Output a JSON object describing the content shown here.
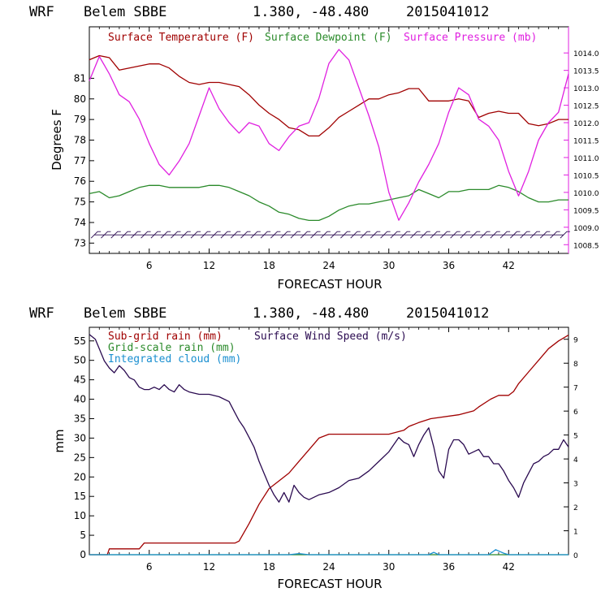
{
  "header": {
    "model": "WRF",
    "station": "Belem SBBE",
    "coords": "1.380, -48.480",
    "init": "2015041012"
  },
  "colors": {
    "temperature": "#a00000",
    "dewpoint": "#2a8a2a",
    "pressure": "#e020e0",
    "subgrid_rain": "#a00000",
    "gridscale_rain": "#2a8a2a",
    "cloud": "#1a8fd0",
    "wind": "#2a0a50"
  },
  "chart_data": [
    {
      "type": "line",
      "xlabel": "FORECAST HOUR",
      "ylabel": "Degrees F",
      "xlim": [
        0,
        48
      ],
      "xticks": [
        6,
        12,
        18,
        24,
        30,
        36,
        42
      ],
      "ylim": [
        72.5,
        83.5
      ],
      "yticks": [
        73,
        74,
        75,
        76,
        77,
        78,
        79,
        80,
        81
      ],
      "y2lim": [
        1008.25,
        1014.75
      ],
      "y2ticks": [
        "1008.5",
        "1009.0",
        "1009.5",
        "1010.0",
        "1010.5",
        "1011.0",
        "1011.5",
        "1012.0",
        "1012.5",
        "1013.0",
        "1013.5",
        "1014.0"
      ],
      "legend": [
        "Surface Temperature (F)",
        "Surface Dewpoint (F)",
        "Surface Pressure (mb)"
      ],
      "series": [
        {
          "name": "Surface Temperature (F)",
          "axis": "left",
          "x": [
            0,
            1,
            2,
            3,
            4,
            5,
            6,
            7,
            8,
            9,
            10,
            11,
            12,
            13,
            14,
            15,
            16,
            17,
            18,
            19,
            20,
            21,
            22,
            23,
            24,
            25,
            26,
            27,
            28,
            29,
            30,
            31,
            32,
            33,
            34,
            35,
            36,
            37,
            38,
            39,
            40,
            41,
            42,
            43,
            44,
            45,
            46,
            47,
            48
          ],
          "y": [
            81.9,
            82.1,
            82.0,
            81.4,
            81.5,
            81.6,
            81.7,
            81.7,
            81.5,
            81.1,
            80.8,
            80.7,
            80.8,
            80.8,
            80.7,
            80.6,
            80.2,
            79.7,
            79.3,
            79.0,
            78.6,
            78.5,
            78.2,
            78.2,
            78.6,
            79.1,
            79.4,
            79.7,
            80.0,
            80.0,
            80.2,
            80.3,
            80.5,
            80.5,
            79.9,
            79.9,
            79.9,
            80.0,
            79.9,
            79.1,
            79.3,
            79.4,
            79.3,
            79.3,
            78.8,
            78.7,
            78.8,
            79.0,
            79.0
          ]
        },
        {
          "name": "Surface Dewpoint (F)",
          "axis": "left",
          "x": [
            0,
            1,
            2,
            3,
            4,
            5,
            6,
            7,
            8,
            9,
            10,
            11,
            12,
            13,
            14,
            15,
            16,
            17,
            18,
            19,
            20,
            21,
            22,
            23,
            24,
            25,
            26,
            27,
            28,
            29,
            30,
            31,
            32,
            33,
            34,
            35,
            36,
            37,
            38,
            39,
            40,
            41,
            42,
            43,
            44,
            45,
            46,
            47,
            48
          ],
          "y": [
            75.4,
            75.5,
            75.2,
            75.3,
            75.5,
            75.7,
            75.8,
            75.8,
            75.7,
            75.7,
            75.7,
            75.7,
            75.8,
            75.8,
            75.7,
            75.5,
            75.3,
            75.0,
            74.8,
            74.5,
            74.4,
            74.2,
            74.1,
            74.1,
            74.3,
            74.6,
            74.8,
            74.9,
            74.9,
            75.0,
            75.1,
            75.2,
            75.3,
            75.6,
            75.4,
            75.2,
            75.5,
            75.5,
            75.6,
            75.6,
            75.6,
            75.8,
            75.7,
            75.5,
            75.2,
            75.0,
            75.0,
            75.1,
            75.1
          ]
        },
        {
          "name": "Surface Pressure (mb)",
          "axis": "right",
          "x": [
            0,
            1,
            2,
            3,
            4,
            5,
            6,
            7,
            8,
            9,
            10,
            11,
            12,
            13,
            14,
            15,
            16,
            17,
            18,
            19,
            20,
            21,
            22,
            23,
            24,
            25,
            26,
            27,
            28,
            29,
            30,
            31,
            32,
            33,
            34,
            35,
            36,
            37,
            38,
            39,
            40,
            41,
            42,
            43,
            44,
            45,
            46,
            47,
            48
          ],
          "y": [
            1013.2,
            1013.9,
            1013.4,
            1012.8,
            1012.6,
            1012.1,
            1011.4,
            1010.8,
            1010.5,
            1010.9,
            1011.4,
            1012.2,
            1013.0,
            1012.4,
            1012.0,
            1011.7,
            1012.0,
            1011.9,
            1011.4,
            1011.2,
            1011.6,
            1011.9,
            1012.0,
            1012.7,
            1013.7,
            1014.1,
            1013.8,
            1013.0,
            1012.2,
            1011.3,
            1010.0,
            1009.2,
            1009.7,
            1010.3,
            1010.8,
            1011.4,
            1012.3,
            1013.0,
            1012.8,
            1012.1,
            1011.9,
            1011.5,
            1010.6,
            1009.9,
            1010.6,
            1011.5,
            1012.0,
            1012.3,
            1013.4
          ]
        }
      ],
      "wind_barbs": {
        "count": 48,
        "axis_value": 73.4
      }
    },
    {
      "type": "line",
      "xlabel": "FORECAST HOUR",
      "ylabel": "mm",
      "xlim": [
        0,
        48
      ],
      "xticks": [
        6,
        12,
        18,
        24,
        30,
        36,
        42
      ],
      "ylim": [
        0,
        58.5
      ],
      "yticks": [
        0,
        5,
        10,
        15,
        20,
        25,
        30,
        35,
        40,
        45,
        50,
        55
      ],
      "y2lim": [
        0,
        9.5
      ],
      "y2ticks": [
        0,
        1,
        2,
        3,
        4,
        5,
        6,
        7,
        8,
        9
      ],
      "legend": [
        "Sub-grid rain (mm)",
        "Grid-scale rain (mm)",
        "Integrated cloud (mm)",
        "Surface Wind Speed (m/s)"
      ],
      "series": [
        {
          "name": "Sub-grid rain (mm)",
          "axis": "left",
          "x": [
            0,
            1,
            1.8,
            2,
            5,
            5.5,
            14.6,
            15,
            16,
            17,
            18,
            19,
            20,
            21,
            22,
            23,
            24,
            30,
            31.5,
            32,
            33,
            34.2,
            37,
            38.5,
            39,
            40.2,
            41,
            42,
            42.5,
            43,
            44,
            45,
            46,
            47,
            48
          ],
          "y": [
            0,
            0,
            0,
            1.5,
            1.5,
            3,
            3,
            3.5,
            8,
            13,
            17,
            19,
            21,
            24,
            27,
            30,
            31,
            31,
            32,
            33,
            34,
            35,
            36,
            37,
            38,
            40,
            41,
            41,
            42,
            44,
            47,
            50,
            53,
            55,
            56.5
          ]
        },
        {
          "name": "Grid-scale rain (mm)",
          "axis": "left",
          "x": [
            0,
            48
          ],
          "y": [
            0,
            0
          ]
        },
        {
          "name": "Integrated cloud (mm)",
          "axis": "left",
          "x": [
            0,
            20,
            21,
            22,
            23,
            34,
            34.5,
            35,
            40,
            40.7,
            41.5,
            42,
            48
          ],
          "y": [
            0,
            0,
            0.3,
            0,
            0,
            0,
            0.6,
            0,
            0,
            1.3,
            0.4,
            0,
            0
          ]
        },
        {
          "name": "Surface Wind Speed (m/s)",
          "axis": "right",
          "x": [
            0,
            0.6,
            1,
            1.5,
            2,
            2.5,
            3,
            3.5,
            4,
            4.5,
            5,
            5.5,
            6,
            6.5,
            7,
            7.5,
            8,
            8.5,
            9,
            9.5,
            10,
            11,
            12,
            13,
            14,
            14.5,
            15,
            15.5,
            16,
            16.5,
            17,
            17.5,
            18,
            18.5,
            19,
            19.5,
            20,
            20.5,
            21,
            21.5,
            22,
            23,
            24,
            25,
            26,
            27,
            28,
            29,
            30,
            30.5,
            31,
            31.5,
            32,
            32.5,
            33,
            33.5,
            34,
            34.5,
            35,
            35.5,
            36,
            36.5,
            37,
            37.5,
            38,
            38.5,
            39,
            39.5,
            40,
            40.5,
            41,
            41.5,
            42,
            42.5,
            43,
            43.5,
            44,
            44.5,
            45,
            45.5,
            46,
            46.5,
            47,
            47.5,
            48
          ],
          "y": [
            9.2,
            9.0,
            8.6,
            8.1,
            7.8,
            7.6,
            7.9,
            7.7,
            7.4,
            7.3,
            7.0,
            6.9,
            6.9,
            7.0,
            6.9,
            7.1,
            6.9,
            6.8,
            7.1,
            6.9,
            6.8,
            6.7,
            6.7,
            6.6,
            6.4,
            6.0,
            5.6,
            5.3,
            4.9,
            4.5,
            3.9,
            3.4,
            2.9,
            2.5,
            2.2,
            2.6,
            2.2,
            2.9,
            2.6,
            2.4,
            2.3,
            2.5,
            2.6,
            2.8,
            3.1,
            3.2,
            3.5,
            3.9,
            4.3,
            4.6,
            4.9,
            4.7,
            4.6,
            4.1,
            4.6,
            5.0,
            5.3,
            4.5,
            3.5,
            3.2,
            4.4,
            4.8,
            4.8,
            4.6,
            4.2,
            4.3,
            4.4,
            4.1,
            4.1,
            3.8,
            3.8,
            3.5,
            3.1,
            2.8,
            2.4,
            3.0,
            3.4,
            3.8,
            3.9,
            4.1,
            4.2,
            4.4,
            4.4,
            4.8,
            4.5
          ]
        }
      ]
    }
  ]
}
